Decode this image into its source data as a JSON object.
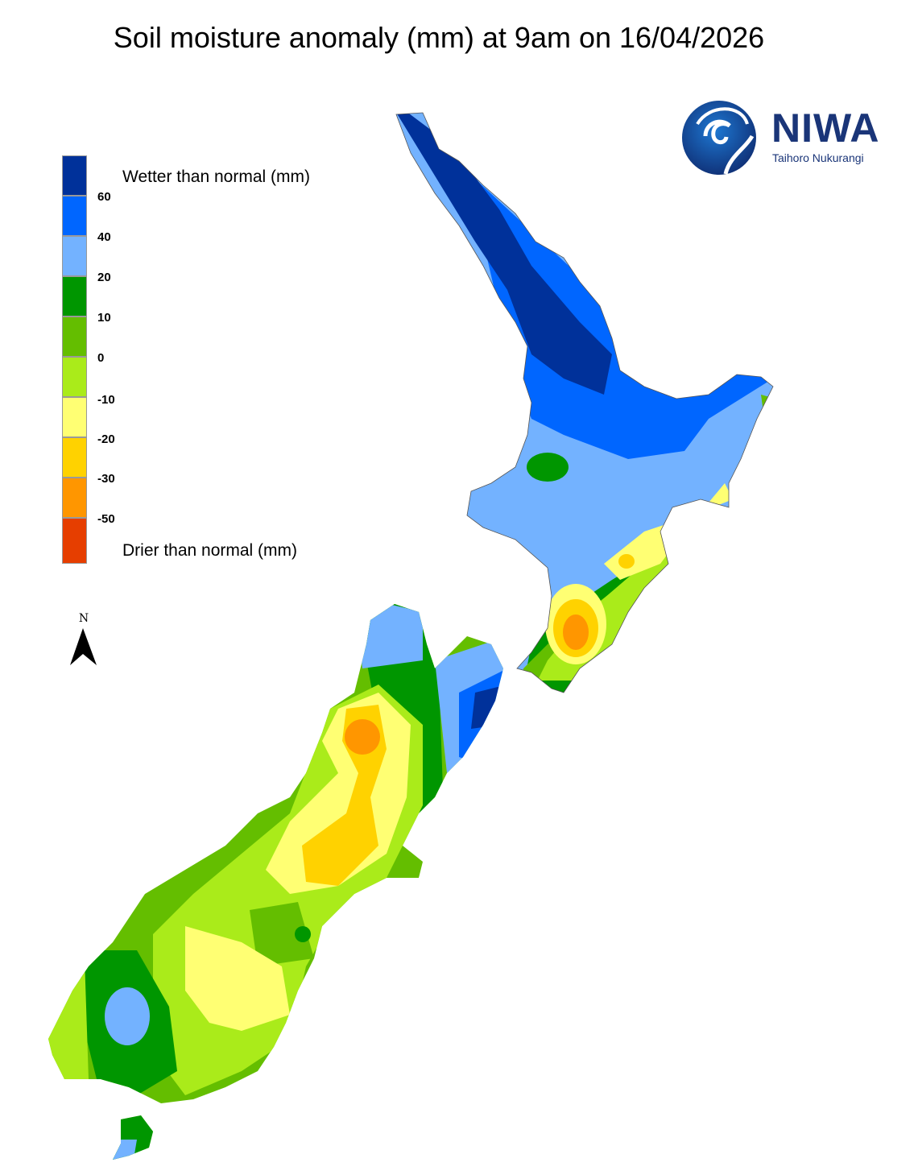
{
  "title": "Soil moisture anomaly (mm) at 9am on 16/04/2026",
  "legend": {
    "top_label": "Wetter than normal (mm)",
    "bottom_label": "Drier than normal (mm)",
    "colors": [
      "#00319a",
      "#0066ff",
      "#73b2ff",
      "#009600",
      "#64be00",
      "#aaeb1a",
      "#ffff73",
      "#ffd200",
      "#ff9600",
      "#e63e00"
    ],
    "ticks": [
      "60",
      "40",
      "20",
      "10",
      "0",
      "-10",
      "-20",
      "-30",
      "-50"
    ]
  },
  "north_arrow": {
    "label": "N",
    "icon": "north-arrow-icon"
  },
  "logo": {
    "name": "NIWA",
    "tagline": "Taihoro Nukurangi"
  }
}
